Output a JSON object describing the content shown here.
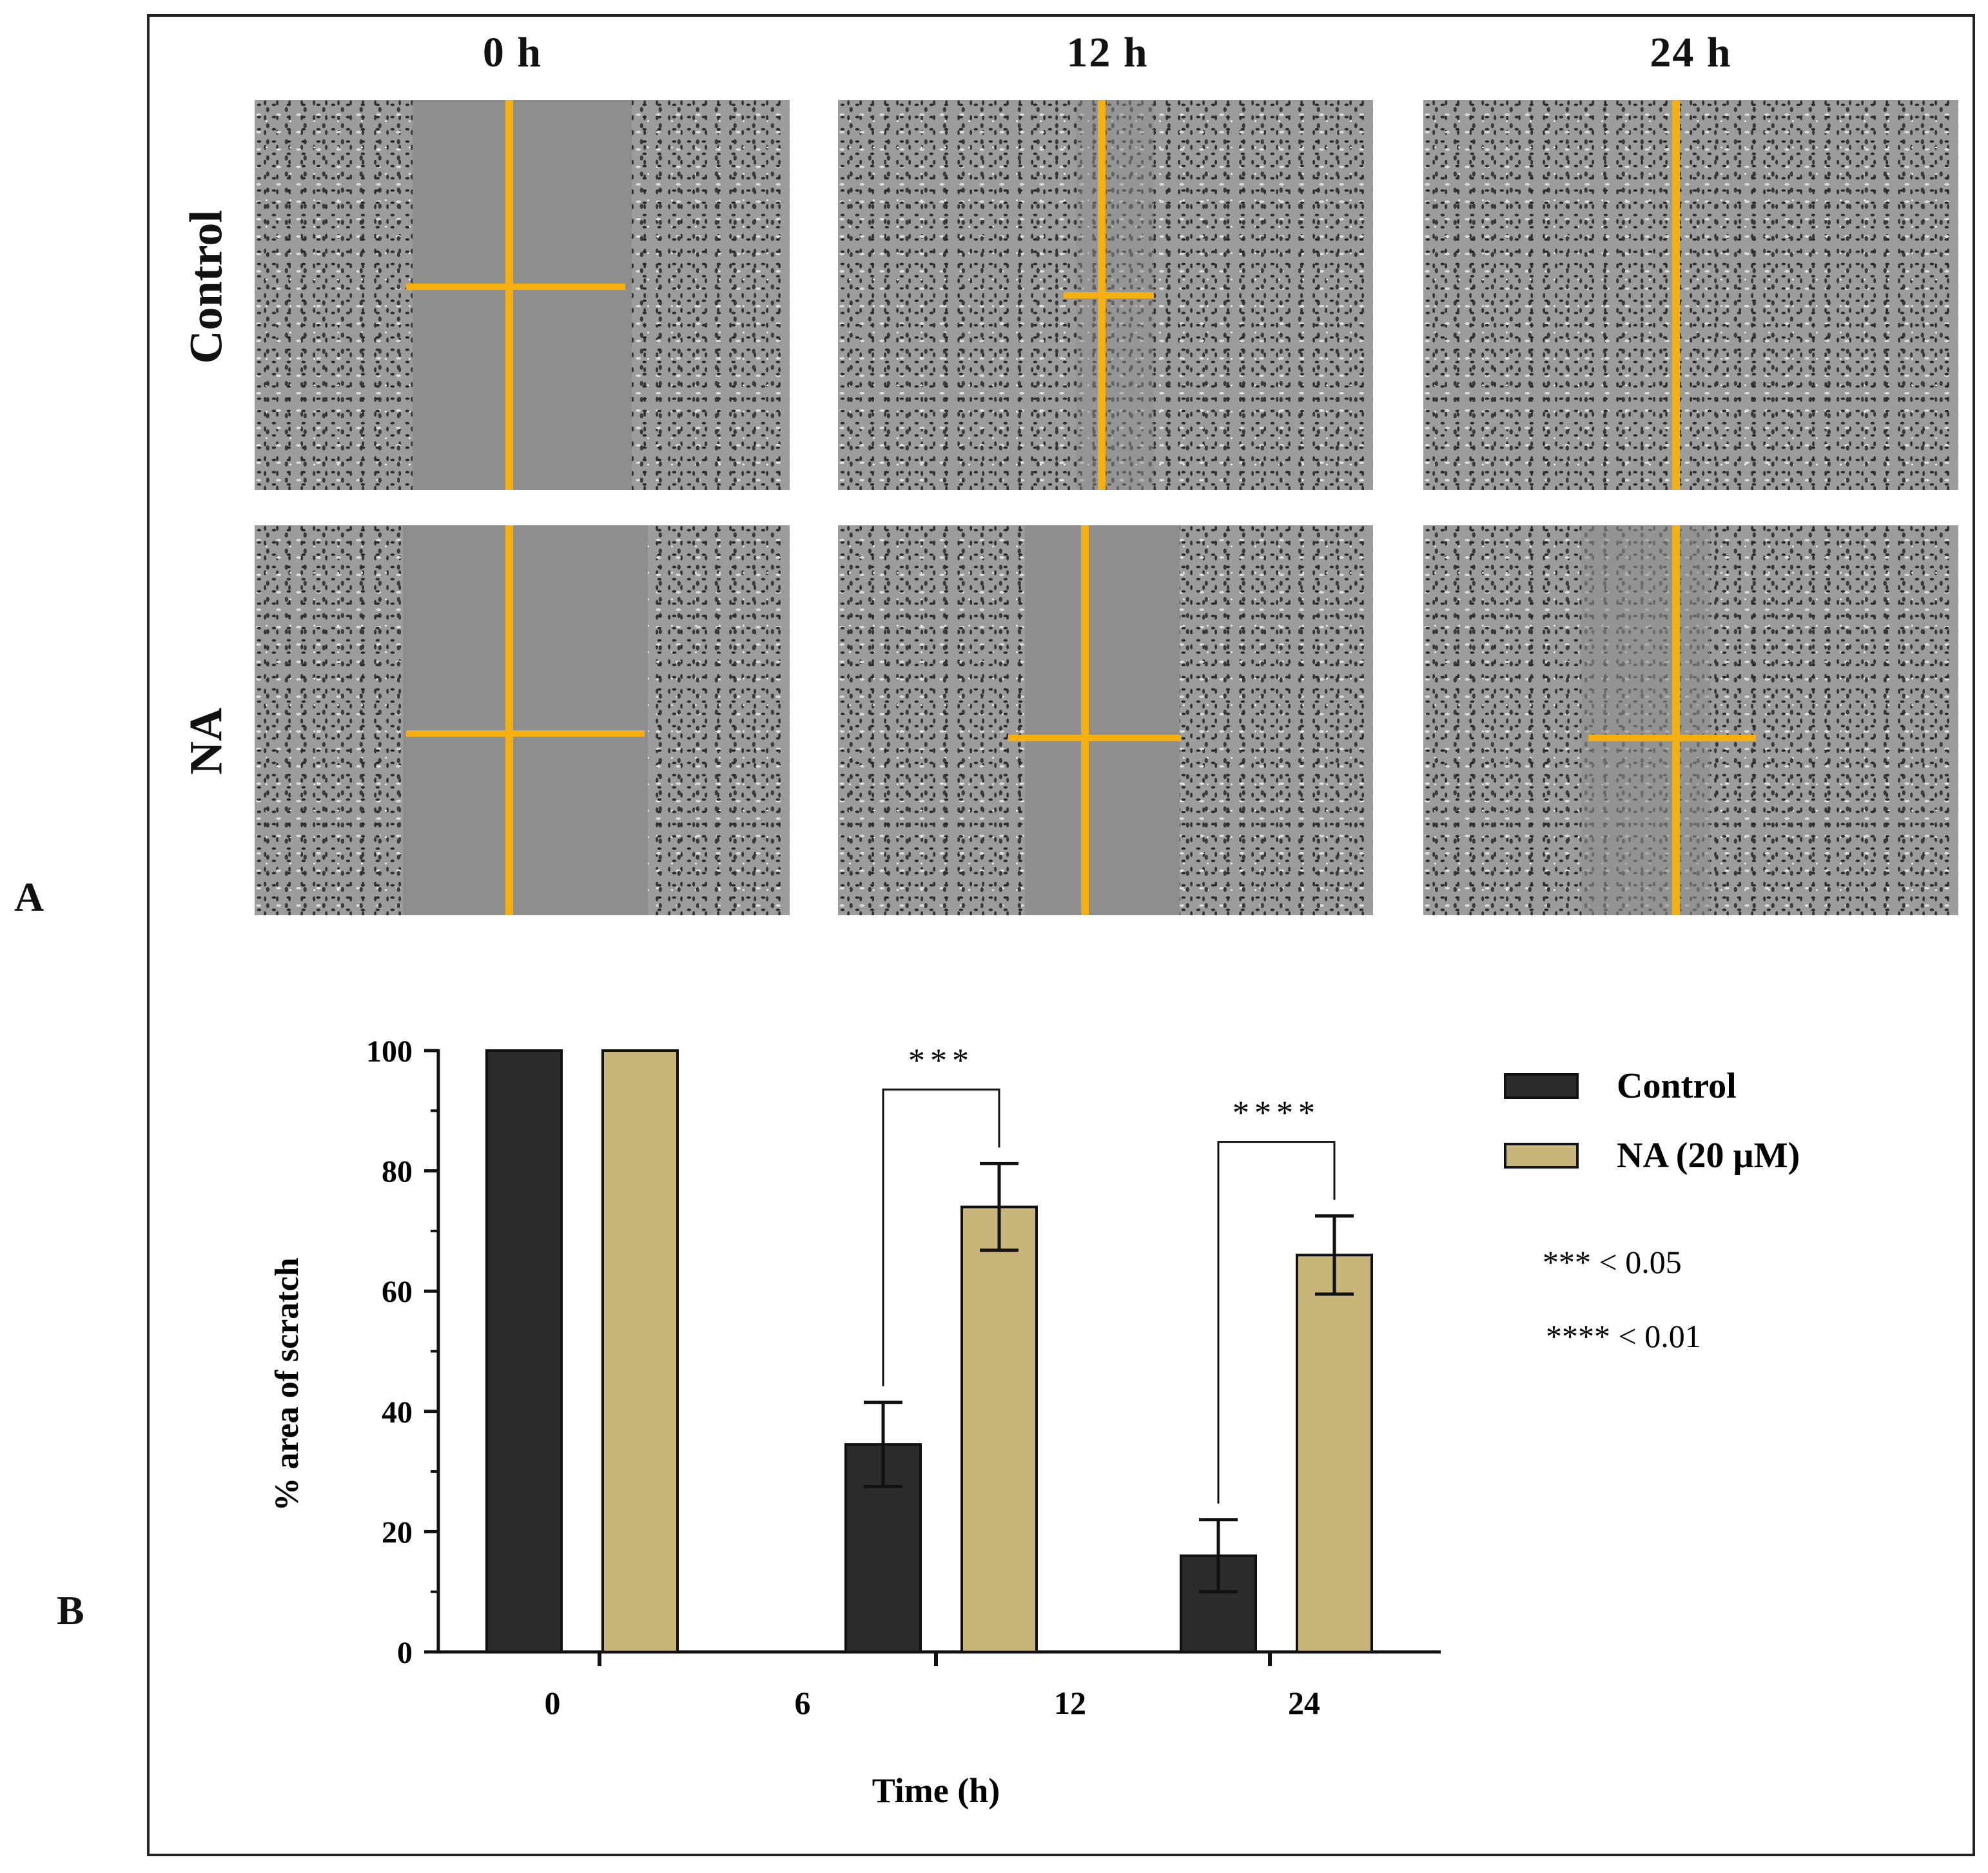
{
  "panel_labels": {
    "a": "A",
    "b": "B"
  },
  "panel_a": {
    "columns": [
      "0 h",
      "12 h",
      "24 h"
    ],
    "rows": [
      "Control",
      "NA"
    ],
    "overlay_color": "#f5b010"
  },
  "chart_data": {
    "type": "bar",
    "title": "",
    "xlabel": "Time (h)",
    "ylabel": "% area of scratch",
    "ylim": [
      0,
      100
    ],
    "yticks": [
      0,
      20,
      40,
      60,
      80,
      100
    ],
    "categories": [
      "0",
      "12",
      "24"
    ],
    "extra_tick_label": "6",
    "series": [
      {
        "name": "Control",
        "color": "#2b2b2b",
        "values": [
          100,
          34.5,
          16
        ],
        "errors": [
          0,
          7,
          6
        ]
      },
      {
        "name": "NA (20 µM)",
        "color": "#c8b57a",
        "values": [
          100,
          74,
          66
        ],
        "errors": [
          0,
          7.2,
          6.5
        ]
      }
    ],
    "significance": [
      {
        "category": "12",
        "label": "***"
      },
      {
        "category": "24",
        "label": "****"
      }
    ],
    "legend_notes": [
      "*** < 0.05",
      "**** < 0.01"
    ],
    "legend_position": "right",
    "grid": false
  }
}
